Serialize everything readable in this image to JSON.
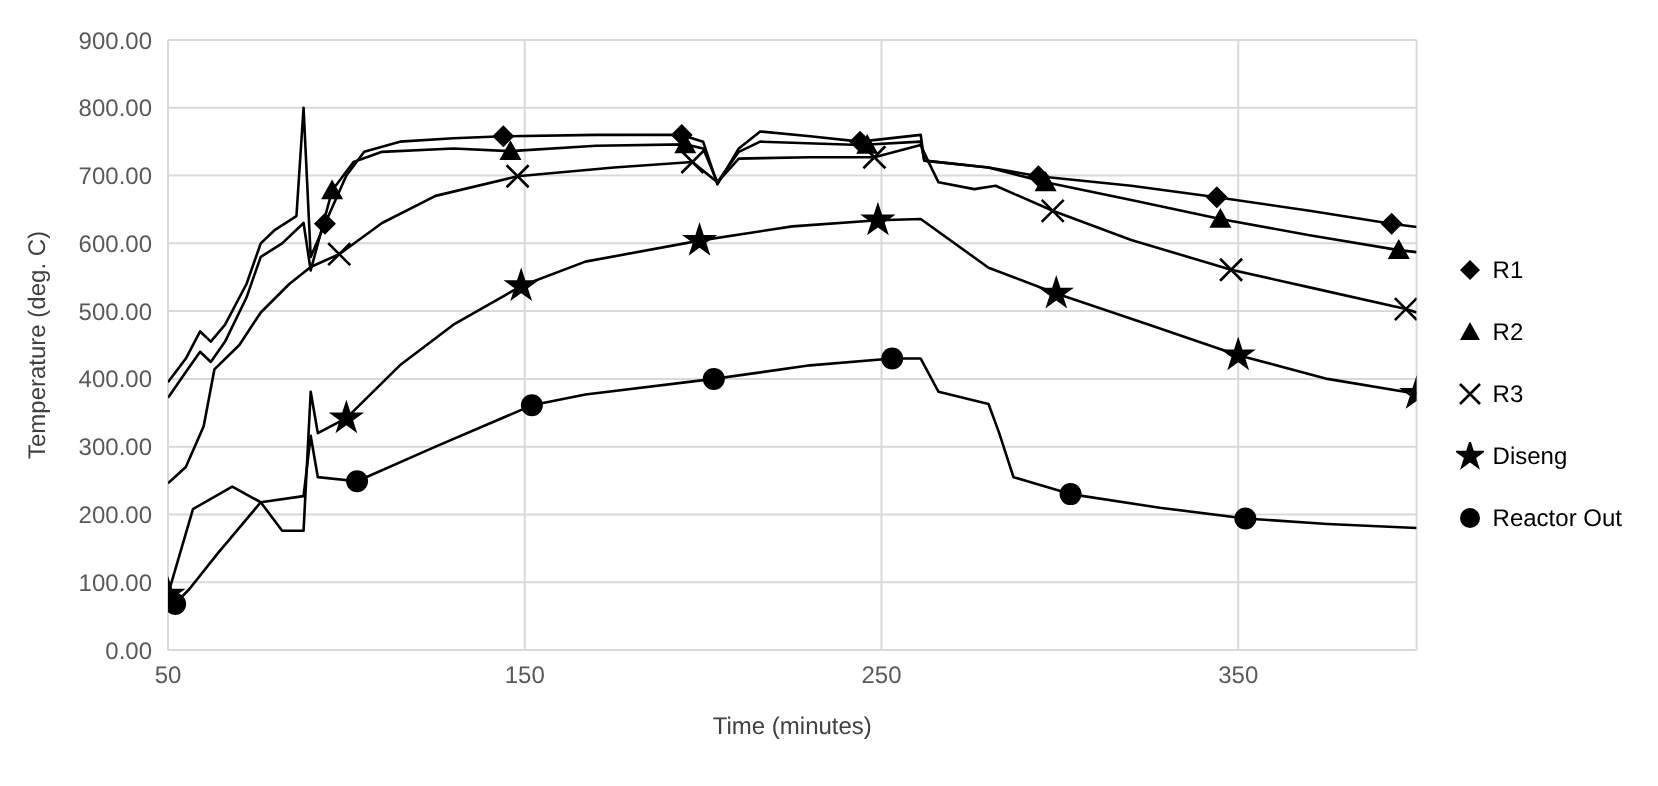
{
  "chart_data": {
    "type": "line",
    "xlabel": "Time (minutes)",
    "ylabel": "Temperature (deg. C)",
    "xlim": [
      50,
      400
    ],
    "xticks": [
      50,
      150,
      250,
      350
    ],
    "ylim": [
      0,
      900
    ],
    "yticks": [
      {
        "value": 0,
        "label": "0.00"
      },
      {
        "value": 100,
        "label": "100.00"
      },
      {
        "value": 200,
        "label": "200.00"
      },
      {
        "value": 300,
        "label": "300.00"
      },
      {
        "value": 400,
        "label": "400.00"
      },
      {
        "value": 500,
        "label": "500.00"
      },
      {
        "value": 600,
        "label": "600.00"
      },
      {
        "value": 700,
        "label": "700.00"
      },
      {
        "value": 800,
        "label": "800.00"
      },
      {
        "value": 900,
        "label": "900.00"
      }
    ],
    "grid": true,
    "legend": "right",
    "line_style": "solid",
    "series": [
      {
        "color": "#000000",
        "marker": "none",
        "x": [
          50,
          55,
          59,
          62,
          66,
          72,
          76,
          80,
          86,
          88,
          90,
          94,
          100,
          105,
          115,
          130,
          144,
          170,
          194,
          200,
          204,
          210,
          216,
          230,
          244,
          261,
          262,
          280,
          294,
          320,
          344,
          370,
          393,
          400
        ],
        "values": [
          395,
          430,
          470,
          455,
          480,
          540,
          600,
          620,
          640,
          800,
          580,
          629,
          700,
          735,
          750,
          755,
          758,
          760,
          760,
          750,
          687,
          740,
          765,
          758,
          750,
          760,
          722,
          712,
          699,
          685,
          668,
          648,
          629,
          624
        ]
      },
      {
        "color": "#000000",
        "marker": "none",
        "x": [
          50,
          55,
          59,
          62,
          66,
          72,
          76,
          82,
          88,
          90,
          96,
          102,
          110,
          130,
          146,
          170,
          195,
          200,
          204,
          210,
          216,
          244,
          261,
          262,
          280,
          296,
          320,
          345,
          370,
          395,
          400
        ],
        "values": [
          372,
          410,
          440,
          425,
          455,
          520,
          580,
          600,
          630,
          560,
          678,
          720,
          735,
          740,
          736,
          744,
          746,
          740,
          690,
          735,
          750,
          745,
          750,
          722,
          712,
          690,
          664,
          636,
          612,
          590,
          587
        ]
      },
      {
        "color": "#000000",
        "marker": "none",
        "x": [
          50,
          55,
          60,
          63,
          70,
          76,
          84,
          90,
          98,
          110,
          125,
          148,
          175,
          197,
          204,
          210,
          230,
          248,
          261,
          263,
          266,
          276,
          282,
          298,
          320,
          348,
          370,
          397,
          400
        ],
        "values": [
          246,
          270,
          330,
          414,
          450,
          498,
          540,
          565,
          584,
          630,
          670,
          699,
          712,
          720,
          690,
          725,
          727,
          727,
          745,
          722,
          690,
          680,
          685,
          648,
          605,
          561,
          535,
          503,
          498
        ]
      },
      {
        "color": "#000000",
        "marker": "none",
        "x": [
          50,
          57,
          68,
          76,
          82,
          88,
          90,
          92,
          100,
          115,
          130,
          149,
          167,
          199,
          225,
          249,
          261,
          280,
          299,
          325,
          350,
          375,
          400
        ],
        "values": [
          82,
          208,
          241,
          218,
          176,
          176,
          381,
          320,
          342,
          420,
          480,
          537,
          573,
          604,
          625,
          634,
          636,
          564,
          526,
          480,
          435,
          400,
          378
        ]
      },
      {
        "color": "#000000",
        "marker": "none",
        "x": [
          52,
          56,
          64,
          76,
          88,
          90,
          92,
          103,
          125,
          152,
          167,
          203,
          230,
          253,
          261,
          266,
          280,
          283,
          287,
          303,
          328,
          352,
          375,
          400
        ],
        "values": [
          68,
          90,
          143,
          218,
          227,
          316,
          255,
          249,
          300,
          361,
          377,
          400,
          420,
          430,
          430,
          381,
          363,
          320,
          255,
          230,
          210,
          194,
          186,
          180
        ]
      },
      {
        "type": "scatter",
        "name": "R1",
        "color": "#000000",
        "marker": "diamond",
        "x": [
          94,
          144,
          194,
          244,
          294,
          344,
          393
        ],
        "values": [
          629,
          758,
          760,
          750,
          699,
          668,
          629
        ]
      },
      {
        "type": "scatter",
        "name": "R2",
        "color": "#000000",
        "marker": "triangle",
        "x": [
          96,
          146,
          195,
          246,
          296,
          345,
          395
        ],
        "values": [
          678,
          736,
          746,
          745,
          690,
          636,
          590
        ]
      },
      {
        "type": "scatter",
        "name": "R3",
        "color": "#000000",
        "marker": "cross",
        "x": [
          98,
          148,
          197,
          248,
          298,
          348,
          397
        ],
        "values": [
          584,
          699,
          720,
          727,
          648,
          561,
          503
        ]
      },
      {
        "type": "scatter",
        "name": "Diseng",
        "color": "#000000",
        "marker": "star",
        "x": [
          50,
          100,
          149,
          199,
          249,
          299,
          350,
          400
        ],
        "values": [
          82,
          342,
          537,
          604,
          634,
          526,
          435,
          378
        ]
      },
      {
        "type": "scatter",
        "name": "Reactor Out",
        "color": "#000000",
        "marker": "circle",
        "x": [
          52,
          103,
          152,
          203,
          253,
          303,
          352
        ],
        "values": [
          68,
          249,
          361,
          400,
          430,
          230,
          194
        ]
      }
    ]
  }
}
